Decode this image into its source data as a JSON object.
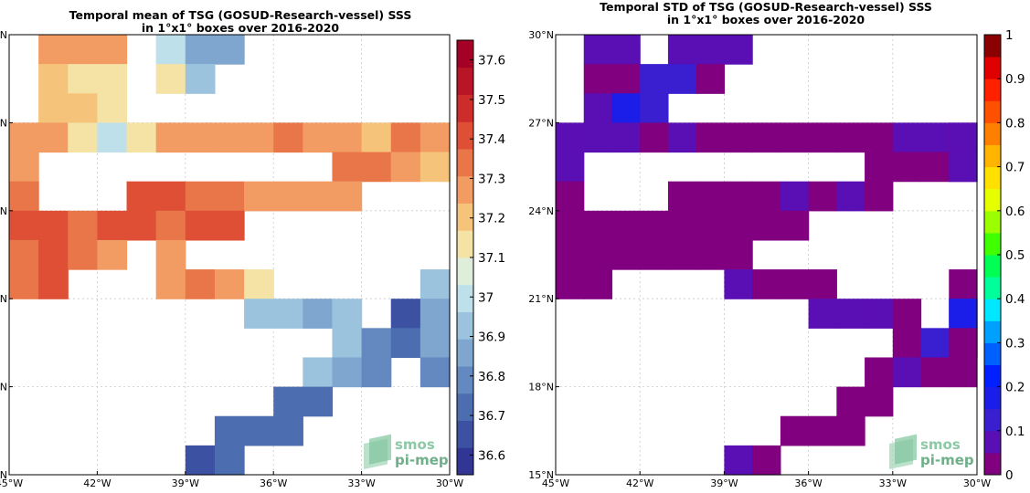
{
  "chart_data": [
    {
      "type": "heatmap",
      "title_lines": [
        "Temporal mean of TSG (GOSUD-Research-vessel) SSS",
        "in 1°x1° boxes over 2016-2020"
      ],
      "xlim": [
        -45,
        -30
      ],
      "ylim": [
        15,
        30
      ],
      "x_ticks": [
        -45,
        -42,
        -39,
        -36,
        -33,
        -30
      ],
      "y_ticks": [
        15,
        18,
        21,
        24,
        27,
        30
      ],
      "x_tick_labels": [
        "45°W",
        "42°W",
        "39°W",
        "36°W",
        "33°W",
        "30°W"
      ],
      "y_tick_labels": [
        "15°N",
        "18°N",
        "21°N",
        "24°N",
        "27°N",
        "30°N"
      ],
      "grid": true,
      "colorbar": {
        "range": [
          36.55,
          37.65
        ],
        "colors": [
          "#313695",
          "#3c51a2",
          "#4c6eb0",
          "#6488c0",
          "#7ea6cf",
          "#9cc3dd",
          "#bde0eb",
          "#dfeeda",
          "#f4e3a5",
          "#f6c37b",
          "#f29c64",
          "#e97649",
          "#de4f35",
          "#cc2c2a",
          "#b81626",
          "#a50026"
        ],
        "tick_values": [
          36.6,
          36.7,
          36.8,
          36.9,
          37,
          37.1,
          37.2,
          37.3,
          37.4,
          37.5,
          37.6
        ],
        "tick_labels": [
          "36.6",
          "36.7",
          "36.8",
          "36.9",
          "37",
          "37.1",
          "37.2",
          "37.3",
          "37.4",
          "37.5",
          "37.6"
        ]
      },
      "cells_note": "[lon_left, lat_bottom, SSS] for 1x1 degree boxes",
      "cells": [
        [
          -44,
          29,
          37.25
        ],
        [
          -43,
          29,
          37.25
        ],
        [
          -42,
          29,
          37.25
        ],
        [
          -40,
          29,
          36.97
        ],
        [
          -39,
          29,
          36.88
        ],
        [
          -38,
          29,
          36.88
        ],
        [
          -44,
          28,
          37.2
        ],
        [
          -43,
          28,
          37.1
        ],
        [
          -42,
          28,
          37.15
        ],
        [
          -40,
          28,
          37.1
        ],
        [
          -39,
          28,
          36.95
        ],
        [
          -44,
          27,
          37.2
        ],
        [
          -43,
          27,
          37.2
        ],
        [
          -42,
          27,
          37.15
        ],
        [
          -45,
          26,
          37.25
        ],
        [
          -44,
          26,
          37.3
        ],
        [
          -43,
          26,
          37.15
        ],
        [
          -42,
          26,
          37.0
        ],
        [
          -41,
          26,
          37.1
        ],
        [
          -40,
          26,
          37.25
        ],
        [
          -39,
          26,
          37.25
        ],
        [
          -38,
          26,
          37.3
        ],
        [
          -37,
          26,
          37.3
        ],
        [
          -36,
          26,
          37.35
        ],
        [
          -35,
          26,
          37.3
        ],
        [
          -34,
          26,
          37.25
        ],
        [
          -33,
          26,
          37.2
        ],
        [
          -32,
          26,
          37.35
        ],
        [
          -31,
          26,
          37.25
        ],
        [
          -45,
          25,
          37.3
        ],
        [
          -34,
          25,
          37.35
        ],
        [
          -33,
          25,
          37.35
        ],
        [
          -32,
          25,
          37.3
        ],
        [
          -31,
          25,
          37.2
        ],
        [
          -45,
          24,
          37.35
        ],
        [
          -41,
          24,
          37.4
        ],
        [
          -40,
          24,
          37.4
        ],
        [
          -39,
          24,
          37.35
        ],
        [
          -38,
          24,
          37.35
        ],
        [
          -37,
          24,
          37.3
        ],
        [
          -36,
          24,
          37.3
        ],
        [
          -35,
          24,
          37.3
        ],
        [
          -34,
          24,
          37.25
        ],
        [
          -45,
          23,
          37.4
        ],
        [
          -44,
          23,
          37.4
        ],
        [
          -43,
          23,
          37.35
        ],
        [
          -42,
          23,
          37.4
        ],
        [
          -41,
          23,
          37.4
        ],
        [
          -40,
          23,
          37.35
        ],
        [
          -39,
          23,
          37.4
        ],
        [
          -38,
          23,
          37.4
        ],
        [
          -45,
          22,
          37.35
        ],
        [
          -44,
          22,
          37.4
        ],
        [
          -43,
          22,
          37.35
        ],
        [
          -42,
          22,
          37.25
        ],
        [
          -40,
          22,
          37.3
        ],
        [
          -45,
          21,
          37.35
        ],
        [
          -44,
          21,
          37.4
        ],
        [
          -40,
          21,
          37.3
        ],
        [
          -39,
          21,
          37.35
        ],
        [
          -38,
          21,
          37.25
        ],
        [
          -37,
          21,
          37.15
        ],
        [
          -31,
          21,
          36.95
        ],
        [
          -37,
          20,
          36.95
        ],
        [
          -36,
          20,
          36.9
        ],
        [
          -35,
          20,
          36.85
        ],
        [
          -34,
          20,
          36.9
        ],
        [
          -32,
          20,
          36.65
        ],
        [
          -31,
          20,
          36.85
        ],
        [
          -34,
          19,
          36.9
        ],
        [
          -33,
          19,
          36.8
        ],
        [
          -32,
          19,
          36.75
        ],
        [
          -31,
          19,
          36.85
        ],
        [
          -35,
          18,
          36.9
        ],
        [
          -34,
          18,
          36.85
        ],
        [
          -33,
          18,
          36.8
        ],
        [
          -31,
          18,
          36.8
        ],
        [
          -36,
          17,
          36.75
        ],
        [
          -35,
          17,
          36.7
        ],
        [
          -38,
          16,
          36.75
        ],
        [
          -37,
          16,
          36.75
        ],
        [
          -36,
          16,
          36.75
        ],
        [
          -39,
          15,
          36.65
        ],
        [
          -38,
          15,
          36.7
        ]
      ]
    },
    {
      "type": "heatmap",
      "title_lines": [
        "Temporal STD of TSG (GOSUD-Research-vessel) SSS",
        "in 1°x1° boxes over 2016-2020"
      ],
      "xlim": [
        -45,
        -30
      ],
      "ylim": [
        15,
        30
      ],
      "x_ticks": [
        -45,
        -42,
        -39,
        -36,
        -33,
        -30
      ],
      "y_ticks": [
        15,
        18,
        21,
        24,
        27,
        30
      ],
      "x_tick_labels": [
        "45°W",
        "42°W",
        "39°W",
        "36°W",
        "33°W",
        "30°W"
      ],
      "y_tick_labels": [
        "15°N",
        "18°N",
        "21°N",
        "24°N",
        "27°N",
        "30°N"
      ],
      "grid": true,
      "colorbar": {
        "range": [
          0,
          1
        ],
        "colors": [
          "#800080",
          "#5a0fb4",
          "#3a1fd0",
          "#1a1ee8",
          "#0020ff",
          "#0060ff",
          "#00a0ff",
          "#00e8ff",
          "#00ff9a",
          "#00ff55",
          "#40ff00",
          "#9cff00",
          "#e6ff00",
          "#ffe000",
          "#ffb400",
          "#ff8000",
          "#ff5000",
          "#ff2000",
          "#e00000",
          "#8b0000"
        ],
        "tick_values": [
          0,
          0.1,
          0.2,
          0.3,
          0.4,
          0.5,
          0.6,
          0.7,
          0.8,
          0.9,
          1
        ],
        "tick_labels": [
          "0",
          "0.1",
          "0.2",
          "0.3",
          "0.4",
          "0.5",
          "0.6",
          "0.7",
          "0.8",
          "0.9",
          "1"
        ]
      },
      "cells_note": "[lon_left, lat_bottom, STD] for 1x1 degree boxes",
      "cells": [
        [
          -44,
          29,
          0.06
        ],
        [
          -43,
          29,
          0.06
        ],
        [
          -41,
          29,
          0.06
        ],
        [
          -40,
          29,
          0.09
        ],
        [
          -39,
          29,
          0.09
        ],
        [
          -44,
          28,
          0.02
        ],
        [
          -43,
          28,
          0.02
        ],
        [
          -42,
          28,
          0.11
        ],
        [
          -41,
          28,
          0.11
        ],
        [
          -40,
          28,
          0.02
        ],
        [
          -44,
          27,
          0.06
        ],
        [
          -43,
          27,
          0.17
        ],
        [
          -42,
          27,
          0.11
        ],
        [
          -45,
          26,
          0.06
        ],
        [
          -44,
          26,
          0.06
        ],
        [
          -43,
          26,
          0.06
        ],
        [
          -42,
          26,
          0.02
        ],
        [
          -41,
          26,
          0.06
        ],
        [
          -40,
          26,
          0.02
        ],
        [
          -39,
          26,
          0.02
        ],
        [
          -38,
          26,
          0.02
        ],
        [
          -37,
          26,
          0.02
        ],
        [
          -36,
          26,
          0.02
        ],
        [
          -35,
          26,
          0.02
        ],
        [
          -34,
          26,
          0.02
        ],
        [
          -33,
          26,
          0.06
        ],
        [
          -32,
          26,
          0.06
        ],
        [
          -31,
          26,
          0.02
        ],
        [
          -30.99,
          26,
          0.06
        ],
        [
          -45,
          25,
          0.06
        ],
        [
          -34,
          25,
          0.02
        ],
        [
          -33,
          25,
          0.02
        ],
        [
          -32,
          25,
          0.02
        ],
        [
          -31,
          25,
          0.02
        ],
        [
          -30.99,
          25,
          0.06
        ],
        [
          -45,
          24,
          0.02
        ],
        [
          -41,
          24,
          0.02
        ],
        [
          -40,
          24,
          0.02
        ],
        [
          -39,
          24,
          0.02
        ],
        [
          -38,
          24,
          0.02
        ],
        [
          -37,
          24,
          0.06
        ],
        [
          -36,
          24,
          0.02
        ],
        [
          -35,
          24,
          0.06
        ],
        [
          -34,
          24,
          0.02
        ],
        [
          -45,
          23,
          0.02
        ],
        [
          -44,
          23,
          0.02
        ],
        [
          -43,
          23,
          0.02
        ],
        [
          -42,
          23,
          0.02
        ],
        [
          -41,
          23,
          0.02
        ],
        [
          -40,
          23,
          0.02
        ],
        [
          -39,
          23,
          0.02
        ],
        [
          -38,
          23,
          0.02
        ],
        [
          -37,
          23,
          0.02
        ],
        [
          -45,
          22,
          0.02
        ],
        [
          -44,
          22,
          0.02
        ],
        [
          -43,
          22,
          0.02
        ],
        [
          -42,
          22,
          0.02
        ],
        [
          -41,
          22,
          0.02
        ],
        [
          -40,
          22,
          0.02
        ],
        [
          -39,
          22,
          0.02
        ],
        [
          -45,
          21,
          0.02
        ],
        [
          -44,
          21,
          0.02
        ],
        [
          -39,
          21,
          0.06
        ],
        [
          -38,
          21,
          0.02
        ],
        [
          -37,
          21,
          0.02
        ],
        [
          -36,
          21,
          0.02
        ],
        [
          -31,
          21,
          0.02
        ],
        [
          -36,
          20,
          0.06
        ],
        [
          -35,
          20,
          0.06
        ],
        [
          -34,
          20,
          0.06
        ],
        [
          -33,
          20,
          0.02
        ],
        [
          -31,
          20,
          0.06
        ],
        [
          -30.99,
          20,
          0.19
        ],
        [
          -33,
          19,
          0.02
        ],
        [
          -32,
          19,
          0.11
        ],
        [
          -31,
          19,
          0.19
        ],
        [
          -30.99,
          19,
          0.02
        ],
        [
          -34,
          18,
          0.02
        ],
        [
          -33,
          18,
          0.06
        ],
        [
          -32,
          18,
          0.02
        ],
        [
          -30.99,
          18,
          0.02
        ],
        [
          -35,
          17,
          0.02
        ],
        [
          -34,
          17,
          0.02
        ],
        [
          -37,
          16,
          0.02
        ],
        [
          -36,
          16,
          0.02
        ],
        [
          -35,
          16,
          0.02
        ],
        [
          -39,
          15,
          0.06
        ],
        [
          -38,
          15,
          0.02
        ]
      ]
    }
  ],
  "logo": {
    "line1": "smos",
    "line2": "pi-mep"
  }
}
